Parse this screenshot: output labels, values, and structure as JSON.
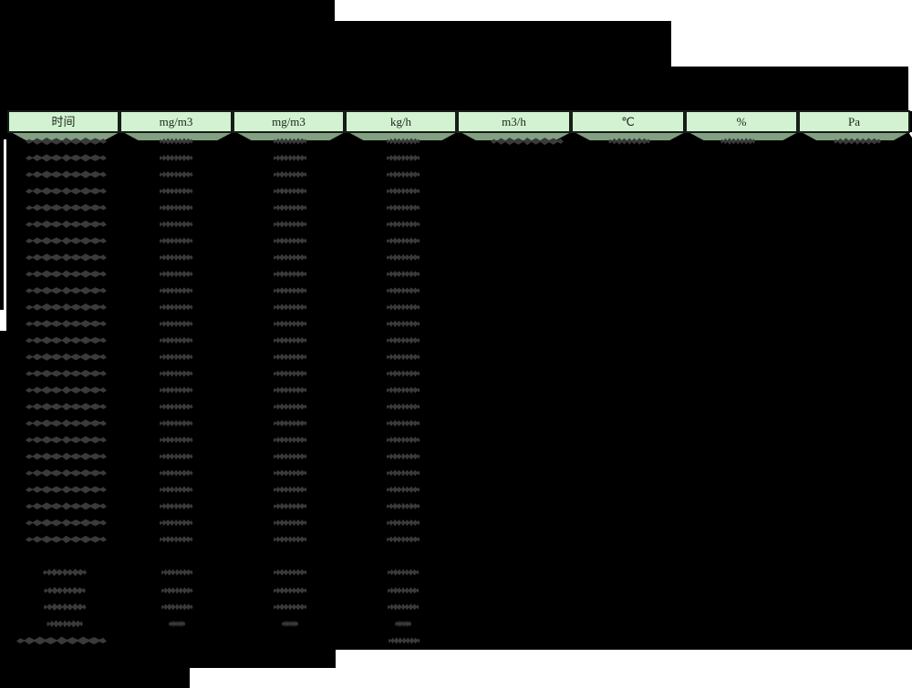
{
  "report": {
    "header_units": [
      "时间",
      "mg/m3",
      "mg/m3",
      "kg/h",
      "m3/h",
      "℃",
      "%",
      "Pa"
    ],
    "colors": {
      "page_black": "#000000",
      "page_white": "#ffffff",
      "header_fill": "#d2f2d2",
      "header_border": "#161d16",
      "header_shadow": "#83a083",
      "redacted_text": "#3a3a3a"
    },
    "table": {
      "column_count": 8,
      "data_row_count": 25,
      "first_data_row_has_all_columns": true,
      "other_data_rows_filled_columns": 4,
      "summary_row_count": 4,
      "footer_row_count": 1,
      "cells_redacted_illegible": true
    }
  }
}
